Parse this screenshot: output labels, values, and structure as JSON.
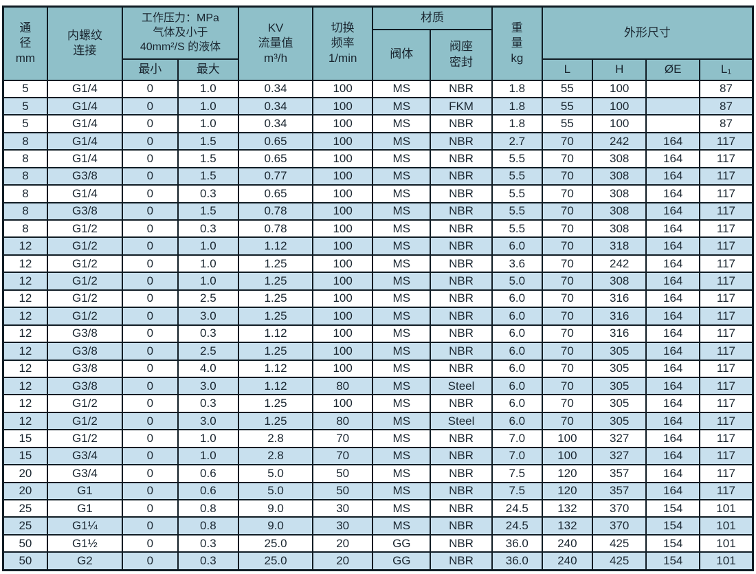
{
  "table": {
    "title_semantic": "valve-specification-table",
    "colors": {
      "header_bg": "#8FC0C9",
      "row_bg": "#FFFFFF",
      "row_stripe_bg": "#C8E0EE",
      "grid_border": "#101C24",
      "text": "#1A2630"
    },
    "header": {
      "diameter_lines": [
        "通",
        "径",
        "mm"
      ],
      "thread_lines": [
        "内螺纹",
        "连接"
      ],
      "pressure_lines": [
        "工作压力：MPa",
        "气体及小于",
        "40mm²/S 的液体"
      ],
      "pressure_min": "最小",
      "pressure_max": "最大",
      "kv_lines": [
        "KV",
        "流量值",
        "m³/h"
      ],
      "freq_lines": [
        "切换",
        "频率",
        "1/min"
      ],
      "material": "材质",
      "material_body": "阀体",
      "material_seal_lines": [
        "阀座",
        "密封"
      ],
      "weight_lines": [
        "重",
        "量",
        "kg"
      ],
      "dimensions": "外形尺寸",
      "dim_l": "L",
      "dim_h": "H",
      "dim_e": "ØE",
      "dim_l1": "L₁"
    },
    "column_keys": [
      "diameter-mm",
      "thread",
      "pressure-min",
      "pressure-max",
      "kv-flow",
      "frequency",
      "valve-body",
      "seat-seal",
      "weight-kg",
      "dim-l",
      "dim-h",
      "dim-oe",
      "dim-l1"
    ],
    "rows": [
      [
        "5",
        "G1/4",
        "0",
        "1.0",
        "0.34",
        "100",
        "MS",
        "NBR",
        "1.8",
        "55",
        "100",
        "",
        "87"
      ],
      [
        "5",
        "G1/4",
        "0",
        "1.0",
        "0.34",
        "100",
        "MS",
        "FKM",
        "1.8",
        "55",
        "100",
        "",
        "87"
      ],
      [
        "5",
        "G1/4",
        "0",
        "1.0",
        "0.34",
        "100",
        "MS",
        "NBR",
        "1.8",
        "55",
        "100",
        "",
        "87"
      ],
      [
        "8",
        "G1/4",
        "0",
        "1.5",
        "0.65",
        "100",
        "MS",
        "NBR",
        "2.7",
        "70",
        "242",
        "164",
        "117"
      ],
      [
        "8",
        "G1/4",
        "0",
        "1.5",
        "0.65",
        "100",
        "MS",
        "NBR",
        "5.5",
        "70",
        "308",
        "164",
        "117"
      ],
      [
        "8",
        "G3/8",
        "0",
        "1.5",
        "0.77",
        "100",
        "MS",
        "NBR",
        "5.5",
        "70",
        "308",
        "164",
        "117"
      ],
      [
        "8",
        "G1/4",
        "0",
        "0.3",
        "0.65",
        "100",
        "MS",
        "NBR",
        "5.5",
        "70",
        "308",
        "164",
        "117"
      ],
      [
        "8",
        "G3/8",
        "0",
        "1.5",
        "0.78",
        "100",
        "MS",
        "NBR",
        "5.5",
        "70",
        "308",
        "164",
        "117"
      ],
      [
        "8",
        "G1/2",
        "0",
        "0.3",
        "0.78",
        "100",
        "MS",
        "NBR",
        "5.5",
        "70",
        "308",
        "164",
        "117"
      ],
      [
        "12",
        "G1/2",
        "0",
        "1.0",
        "1.12",
        "100",
        "MS",
        "NBR",
        "6.0",
        "70",
        "318",
        "164",
        "117"
      ],
      [
        "12",
        "G1/2",
        "0",
        "1.0",
        "1.25",
        "100",
        "MS",
        "NBR",
        "3.6",
        "70",
        "242",
        "164",
        "117"
      ],
      [
        "12",
        "G1/2",
        "0",
        "1.0",
        "1.25",
        "100",
        "MS",
        "NBR",
        "5.0",
        "70",
        "308",
        "164",
        "117"
      ],
      [
        "12",
        "G1/2",
        "0",
        "2.5",
        "1.25",
        "100",
        "MS",
        "NBR",
        "6.0",
        "70",
        "316",
        "164",
        "117"
      ],
      [
        "12",
        "G1/2",
        "0",
        "3.0",
        "1.25",
        "100",
        "MS",
        "NBR",
        "6.0",
        "70",
        "316",
        "164",
        "117"
      ],
      [
        "12",
        "G3/8",
        "0",
        "0.3",
        "1.12",
        "100",
        "MS",
        "NBR",
        "6.0",
        "70",
        "316",
        "164",
        "117"
      ],
      [
        "12",
        "G3/8",
        "0",
        "2.5",
        "1.25",
        "100",
        "MS",
        "NBR",
        "6.0",
        "70",
        "305",
        "164",
        "117"
      ],
      [
        "12",
        "G3/8",
        "0",
        "4.0",
        "1.12",
        "100",
        "MS",
        "NBR",
        "6.0",
        "70",
        "305",
        "164",
        "117"
      ],
      [
        "12",
        "G3/8",
        "0",
        "3.0",
        "1.12",
        "80",
        "MS",
        "Steel",
        "6.0",
        "70",
        "305",
        "164",
        "117"
      ],
      [
        "12",
        "G1/2",
        "0",
        "0.3",
        "1.25",
        "100",
        "MS",
        "NBR",
        "6.0",
        "70",
        "305",
        "164",
        "117"
      ],
      [
        "12",
        "G1/2",
        "0",
        "3.0",
        "1.25",
        "80",
        "MS",
        "Steel",
        "6.0",
        "70",
        "305",
        "164",
        "117"
      ],
      [
        "15",
        "G1/2",
        "0",
        "1.0",
        "2.8",
        "70",
        "MS",
        "NBR",
        "7.0",
        "100",
        "327",
        "164",
        "117"
      ],
      [
        "15",
        "G3/4",
        "0",
        "1.0",
        "2.8",
        "70",
        "MS",
        "NBR",
        "7.0",
        "100",
        "327",
        "164",
        "117"
      ],
      [
        "20",
        "G3/4",
        "0",
        "0.6",
        "5.0",
        "50",
        "MS",
        "NBR",
        "7.5",
        "120",
        "357",
        "164",
        "117"
      ],
      [
        "20",
        "G1",
        "0",
        "0.6",
        "5.0",
        "50",
        "MS",
        "NBR",
        "7.5",
        "120",
        "357",
        "164",
        "117"
      ],
      [
        "25",
        "G1",
        "0",
        "0.8",
        "9.0",
        "30",
        "MS",
        "NBR",
        "24.5",
        "132",
        "370",
        "154",
        "101"
      ],
      [
        "25",
        "G1¼",
        "0",
        "0.8",
        "9.0",
        "30",
        "MS",
        "NBR",
        "24.5",
        "132",
        "370",
        "154",
        "101"
      ],
      [
        "50",
        "G1½",
        "0",
        "0.3",
        "25.0",
        "20",
        "GG",
        "NBR",
        "36.0",
        "240",
        "425",
        "154",
        "101"
      ],
      [
        "50",
        "G2",
        "0",
        "0.3",
        "25.0",
        "20",
        "GG",
        "NBR",
        "36.0",
        "240",
        "425",
        "154",
        "101"
      ]
    ]
  }
}
